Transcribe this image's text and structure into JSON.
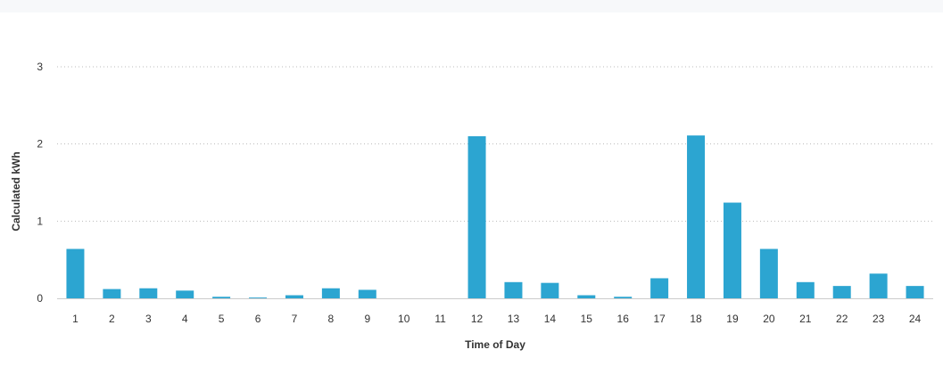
{
  "chart_data": {
    "type": "bar",
    "categories": [
      "1",
      "2",
      "3",
      "4",
      "5",
      "6",
      "7",
      "8",
      "9",
      "10",
      "11",
      "12",
      "13",
      "14",
      "15",
      "16",
      "17",
      "18",
      "19",
      "20",
      "21",
      "22",
      "23",
      "24"
    ],
    "values": [
      0.64,
      0.12,
      0.13,
      0.1,
      0.02,
      0.01,
      0.04,
      0.13,
      0.11,
      0,
      0,
      2.1,
      0.21,
      0.2,
      0.04,
      0.02,
      0.26,
      2.11,
      1.24,
      0.64,
      0.21,
      0.16,
      0.32,
      0.16
    ],
    "xlabel": "Time of Day",
    "ylabel": "Calculated kWh",
    "ylim": [
      0,
      3
    ],
    "yticks": [
      0,
      1,
      2,
      3
    ],
    "grid": true,
    "legend": "none",
    "colors": {
      "bar": "#2ca5d1",
      "grid": "#bbbbbb",
      "text": "#333333"
    }
  }
}
